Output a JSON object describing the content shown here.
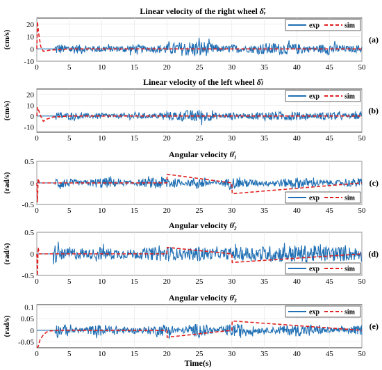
{
  "figure": {
    "xlabel": "Time(s)"
  },
  "chart_data": [
    {
      "type": "line",
      "title": "Linear velocity of the right wheel",
      "title_symbol": "δ̇ᵣ",
      "ylabel": "(cm/s)",
      "panel_label": "(a)",
      "xlim": [
        0,
        50
      ],
      "ylim": [
        -10,
        25
      ],
      "xticks": [
        "0",
        "5",
        "10",
        "15",
        "20",
        "25",
        "30",
        "35",
        "40",
        "45",
        "50"
      ],
      "yticks": [
        "20",
        "10",
        "0",
        "-10"
      ],
      "legend_position": "top-right",
      "series": [
        {
          "name": "exp",
          "color": "#1f6fb4",
          "style": "solid",
          "description": "noise around 0, amplitude ~±6 cm/s after t≈3 s",
          "x": [
            0,
            2.8,
            3,
            4,
            5,
            10,
            15,
            20,
            25,
            30,
            35,
            40,
            45,
            50
          ],
          "y": [
            0,
            0,
            5,
            3,
            -4,
            2,
            -3,
            4,
            9,
            -3,
            5,
            4,
            -5,
            3
          ]
        },
        {
          "name": "sim",
          "color": "#e02020",
          "style": "dashed",
          "x": [
            0,
            0.1,
            0.3,
            0.6,
            1,
            2,
            5,
            50
          ],
          "y": [
            0,
            22,
            12,
            2,
            -2,
            -1,
            0,
            0
          ]
        }
      ],
      "grid": true
    },
    {
      "type": "line",
      "title": "Linear velocity of the left wheel",
      "title_symbol": "δ̇ₗ",
      "ylabel": "(cm/s)",
      "panel_label": "(b)",
      "xlim": [
        0,
        50
      ],
      "ylim": [
        -15,
        25
      ],
      "xticks": [
        "0",
        "5",
        "10",
        "15",
        "20",
        "25",
        "30",
        "35",
        "40",
        "45",
        "50"
      ],
      "yticks": [
        "20",
        "10",
        "0",
        "-10"
      ],
      "legend_position": "top-right",
      "series": [
        {
          "name": "exp",
          "color": "#1f6fb4",
          "style": "solid",
          "x": [
            0,
            2.8,
            3,
            5,
            10,
            15,
            20,
            25,
            30,
            35,
            40,
            45,
            50
          ],
          "y": [
            0,
            0,
            5,
            -3,
            2,
            -3,
            3,
            8,
            -3,
            4,
            4,
            -4,
            3
          ]
        },
        {
          "name": "sim",
          "color": "#e02020",
          "style": "dashed",
          "x": [
            0,
            0.1,
            0.3,
            0.6,
            1,
            1.5,
            2.5,
            5,
            50
          ],
          "y": [
            0,
            8,
            5,
            0,
            -5,
            -3,
            -1,
            0,
            0
          ]
        }
      ],
      "grid": true
    },
    {
      "type": "line",
      "title": "Angular velocity",
      "title_symbol": "θ̇₁",
      "ylabel": "(rad/s)",
      "panel_label": "(c)",
      "xlim": [
        0,
        50
      ],
      "ylim": [
        -0.5,
        0.5
      ],
      "xticks": [
        "0",
        "5",
        "10",
        "15",
        "20",
        "25",
        "30",
        "35",
        "40",
        "45",
        "50"
      ],
      "yticks": [
        "0.5",
        "0",
        "-0.5"
      ],
      "legend_position": "bottom-right",
      "series": [
        {
          "name": "exp",
          "color": "#1f6fb4",
          "style": "solid",
          "x": [
            0,
            2.8,
            3,
            10,
            20,
            25,
            30,
            40,
            50
          ],
          "y": [
            0,
            0,
            0.18,
            -0.15,
            0.2,
            -0.18,
            0.15,
            -0.15,
            0.12
          ]
        },
        {
          "name": "sim",
          "color": "#e02020",
          "style": "dashed",
          "x": [
            0,
            0.1,
            0.2,
            0.4,
            1,
            20,
            20.05,
            30,
            30.05,
            50
          ],
          "y": [
            0,
            -0.45,
            0.1,
            0,
            0,
            0,
            0.2,
            0,
            -0.25,
            0
          ]
        }
      ],
      "grid": true
    },
    {
      "type": "line",
      "title": "Angular velocity",
      "title_symbol": "θ̇₂",
      "ylabel": "(rad/s)",
      "panel_label": "(d)",
      "xlim": [
        0,
        50
      ],
      "ylim": [
        -0.5,
        0.5
      ],
      "xticks": [
        "0",
        "5",
        "10",
        "15",
        "20",
        "25",
        "30",
        "35",
        "40",
        "45",
        "50"
      ],
      "yticks": [
        "0.5",
        "0",
        "-0.5"
      ],
      "legend_position": "bottom-right",
      "series": [
        {
          "name": "exp",
          "color": "#1f6fb4",
          "style": "solid",
          "x": [
            0,
            2.5,
            2.6,
            2.8,
            5,
            10,
            20,
            25,
            30,
            40,
            50
          ],
          "y": [
            0,
            0,
            0.4,
            -0.3,
            0.12,
            -0.1,
            0.15,
            -0.15,
            0.1,
            0.2,
            0.1
          ]
        },
        {
          "name": "sim",
          "color": "#e02020",
          "style": "dashed",
          "x": [
            0,
            0.1,
            0.2,
            0.4,
            1,
            20,
            20.05,
            30,
            30.05,
            50
          ],
          "y": [
            0,
            -0.5,
            0.15,
            0,
            0,
            0,
            0.15,
            0,
            -0.2,
            0
          ]
        }
      ],
      "grid": true
    },
    {
      "type": "line",
      "title": "Angular velocity",
      "title_symbol": "θ̇₃",
      "ylabel": "(rad/s)",
      "panel_label": "(e)",
      "xlim": [
        0,
        50
      ],
      "ylim": [
        -0.075,
        0.11
      ],
      "xticks": [
        "0",
        "5",
        "10",
        "15",
        "20",
        "25",
        "30",
        "35",
        "40",
        "45",
        "50"
      ],
      "yticks": [
        "0.1",
        "0.05",
        "0",
        "-0.05"
      ],
      "legend_position": "top-right",
      "series": [
        {
          "name": "exp",
          "color": "#1f6fb4",
          "style": "solid",
          "x": [
            0,
            2.8,
            3,
            10,
            20,
            25,
            30,
            40,
            50
          ],
          "y": [
            0,
            0,
            0.03,
            -0.03,
            0.03,
            -0.04,
            0.035,
            -0.03,
            0.02
          ]
        },
        {
          "name": "sim",
          "color": "#e02020",
          "style": "dashed",
          "x": [
            0,
            0.2,
            0.5,
            1,
            1.5,
            2,
            3,
            4,
            20,
            20.05,
            30,
            30.05,
            50
          ],
          "y": [
            -0.075,
            -0.07,
            -0.04,
            -0.02,
            -0.008,
            -0.003,
            0,
            0,
            0,
            -0.03,
            0,
            0.04,
            0
          ]
        }
      ],
      "grid": true
    }
  ]
}
